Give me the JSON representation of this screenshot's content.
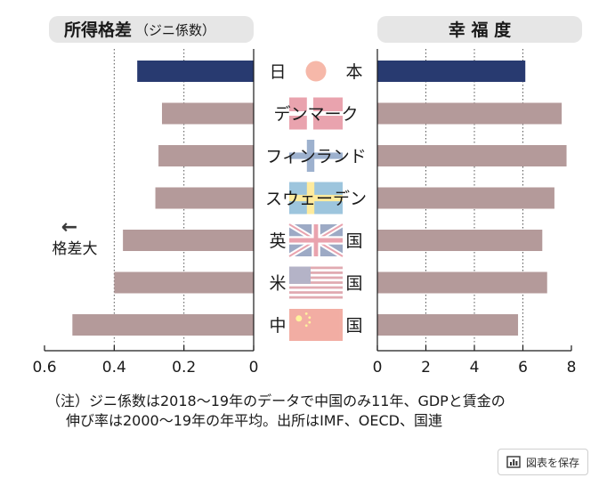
{
  "chart_data": {
    "type": "bar",
    "left_panel": {
      "title_main": "所得格差",
      "title_sub": "（ジニ係数）",
      "direction_label": "格差大",
      "direction_arrow": "←",
      "xlim": [
        0.6,
        0
      ],
      "ticks": [
        "0.6",
        "0.4",
        "0.2",
        "0"
      ],
      "tick_values": [
        0.6,
        0.4,
        0.2,
        0
      ]
    },
    "right_panel": {
      "title": "幸 福 度",
      "xlim": [
        0,
        8
      ],
      "ticks": [
        "0",
        "2",
        "4",
        "6",
        "8"
      ],
      "tick_values": [
        0,
        2,
        4,
        6,
        8
      ]
    },
    "categories": [
      {
        "left": "日",
        "right": "本",
        "wide": false,
        "flag": "japan"
      },
      {
        "left": "デンマーク",
        "right": "",
        "wide": true,
        "flag": "denmark"
      },
      {
        "left": "フィンランド",
        "right": "",
        "wide": true,
        "flag": "finland"
      },
      {
        "left": "スウェーデン",
        "right": "",
        "wide": true,
        "flag": "sweden"
      },
      {
        "left": "英",
        "right": "国",
        "wide": false,
        "flag": "uk"
      },
      {
        "left": "米",
        "right": "国",
        "wide": false,
        "flag": "usa"
      },
      {
        "left": "中",
        "right": "国",
        "wide": false,
        "flag": "china"
      }
    ],
    "series": [
      {
        "values": [
          0.334,
          0.263,
          0.273,
          0.282,
          0.375,
          0.4,
          0.52
        ]
      },
      {
        "values": [
          6.1,
          7.6,
          7.8,
          7.3,
          6.8,
          7.0,
          5.8
        ]
      }
    ],
    "colors": {
      "highlight": "#283a70",
      "bar": "#b49a9a",
      "panel_title_bg": "#e6e6e6",
      "grid": "#555555"
    }
  },
  "note": {
    "line1": "（注）ジニ係数は2018～19年のデータで中国のみ11年、GDPと賃金の",
    "line2": "伸び率は2000～19年の年平均。出所はIMF、OECD、国連"
  },
  "save_button": {
    "label": "図表を保存",
    "icon": "bar-chart-icon"
  }
}
